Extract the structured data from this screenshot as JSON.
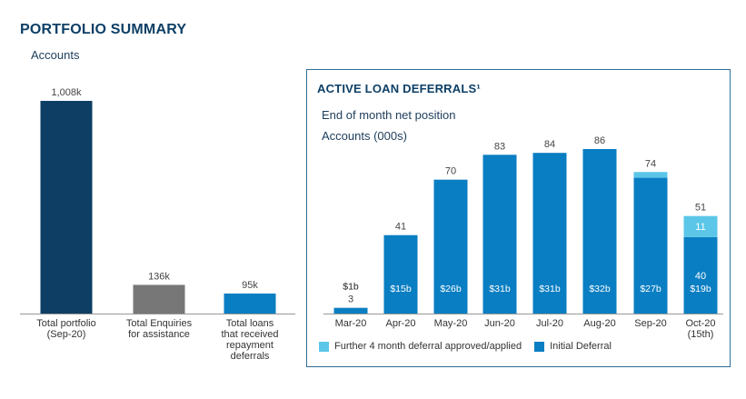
{
  "header": {
    "title": "PORTFOLIO SUMMARY",
    "left_subtitle": "Accounts"
  },
  "panel": {
    "title": "ACTIVE LOAN DEFERRALS¹",
    "subtitle_1": "End of month net position",
    "subtitle_2": "Accounts (000s)"
  },
  "chart_data": [
    {
      "type": "bar",
      "categories": [
        [
          "Total portfolio",
          "(Sep-20)"
        ],
        [
          "Total Enquiries",
          "for assistance"
        ],
        [
          "Total loans",
          "that received",
          "repayment",
          "deferrals"
        ]
      ],
      "values": [
        1008,
        136,
        95
      ],
      "data_labels": [
        "1,008k",
        "136k",
        "95k"
      ],
      "colors": [
        "#0e3e63",
        "#777777",
        "#0a7ec2"
      ],
      "ylim": [
        0,
        1008
      ]
    },
    {
      "type": "bar",
      "stacked": true,
      "categories": [
        [
          "Mar-20"
        ],
        [
          "Apr-20"
        ],
        [
          "May-20"
        ],
        [
          "Jun-20"
        ],
        [
          "Jul-20"
        ],
        [
          "Aug-20"
        ],
        [
          "Sep-20"
        ],
        [
          "Oct-20",
          "(15th)"
        ]
      ],
      "series": [
        {
          "name": "Initial Deferral",
          "color": "#0a7ec2",
          "values": [
            3,
            41,
            70,
            83,
            84,
            86,
            71,
            40
          ],
          "value_labels": [
            "",
            "",
            "",
            "",
            "",
            "",
            "",
            "40"
          ],
          "inner_labels": [
            "$1b",
            "$15b",
            "$26b",
            "$31b",
            "$31b",
            "$32b",
            "$27b",
            "$19b"
          ]
        },
        {
          "name": "Further 4 month deferral approved/applied",
          "color": "#5bc6e8",
          "values": [
            0,
            0,
            0,
            0,
            0,
            0,
            3,
            11
          ],
          "value_labels": [
            "",
            "",
            "",
            "",
            "",
            "",
            "",
            "11"
          ]
        }
      ],
      "totals": [
        "3",
        "41",
        "70",
        "83",
        "84",
        "86",
        "74",
        "51"
      ],
      "ylim": [
        0,
        86
      ],
      "legend_position": "bottom"
    }
  ]
}
